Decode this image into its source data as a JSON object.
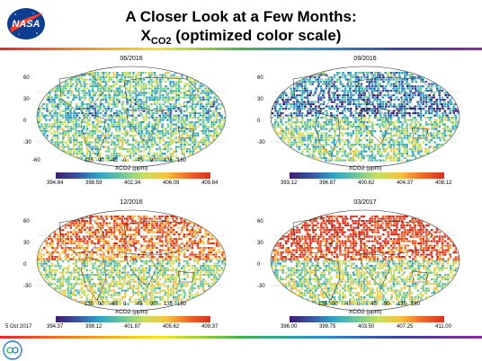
{
  "header": {
    "title_line1": "A Closer Look at a Few Months:",
    "title_line2_main": "X",
    "title_line2_sub": "CO2",
    "title_line2_rest": " (optimized color scale)"
  },
  "logo": {
    "name": "NASA",
    "text": "NASA"
  },
  "panels": [
    {
      "title": "06/2016",
      "colorbar_label": "XCO2 (ppm)",
      "ticks": [
        "394.84",
        "398.59",
        "402.34",
        "406.09",
        "409.84"
      ],
      "lat_labels": [
        "60",
        "30",
        "0",
        "-30",
        "-60"
      ],
      "lon_labels": [
        "-135",
        "-90",
        "-45",
        "0",
        "45",
        "90",
        "135",
        "180"
      ]
    },
    {
      "title": "09/2016",
      "colorbar_label": "XCO2 (ppm)",
      "ticks": [
        "393.12",
        "396.87",
        "400.62",
        "404.37",
        "408.12"
      ],
      "lat_labels": [
        "60",
        "30",
        "0",
        "-30"
      ],
      "lon_labels": []
    },
    {
      "title": "12/2016",
      "colorbar_label": "XCO2 (ppm)",
      "ticks": [
        "394.37",
        "398.12",
        "401.87",
        "405.62",
        "409.37"
      ],
      "lat_labels": [
        "60",
        "30",
        "0",
        "-30"
      ],
      "lon_labels": [
        "-135",
        "-90",
        "-45",
        "0",
        "45",
        "90",
        "135",
        "180"
      ]
    },
    {
      "title": "03/2017",
      "colorbar_label": "XCO2 (ppm)",
      "ticks": [
        "396.00",
        "399.75",
        "403.50",
        "407.25",
        "411.00"
      ],
      "lat_labels": [
        "60",
        "30",
        "0",
        "-30"
      ],
      "lon_labels": [
        "-135",
        "-90",
        "-45",
        "0",
        "45",
        "90",
        "135",
        "180"
      ]
    }
  ],
  "footnote": "5 Oct 2017",
  "footer_logo": {
    "name": "oco-logo"
  },
  "colors": {
    "rainbow": [
      "#e8262b",
      "#f58a1f",
      "#f6e71c",
      "#3fb54a",
      "#2a8ed0",
      "#3c3fa6",
      "#8b2ba0"
    ],
    "colorbar": [
      "#3b1d6e",
      "#3a54a4",
      "#2fa4c3",
      "#6dc59a",
      "#c6df5f",
      "#f7c23c",
      "#ee6a2a",
      "#d7301f"
    ]
  }
}
